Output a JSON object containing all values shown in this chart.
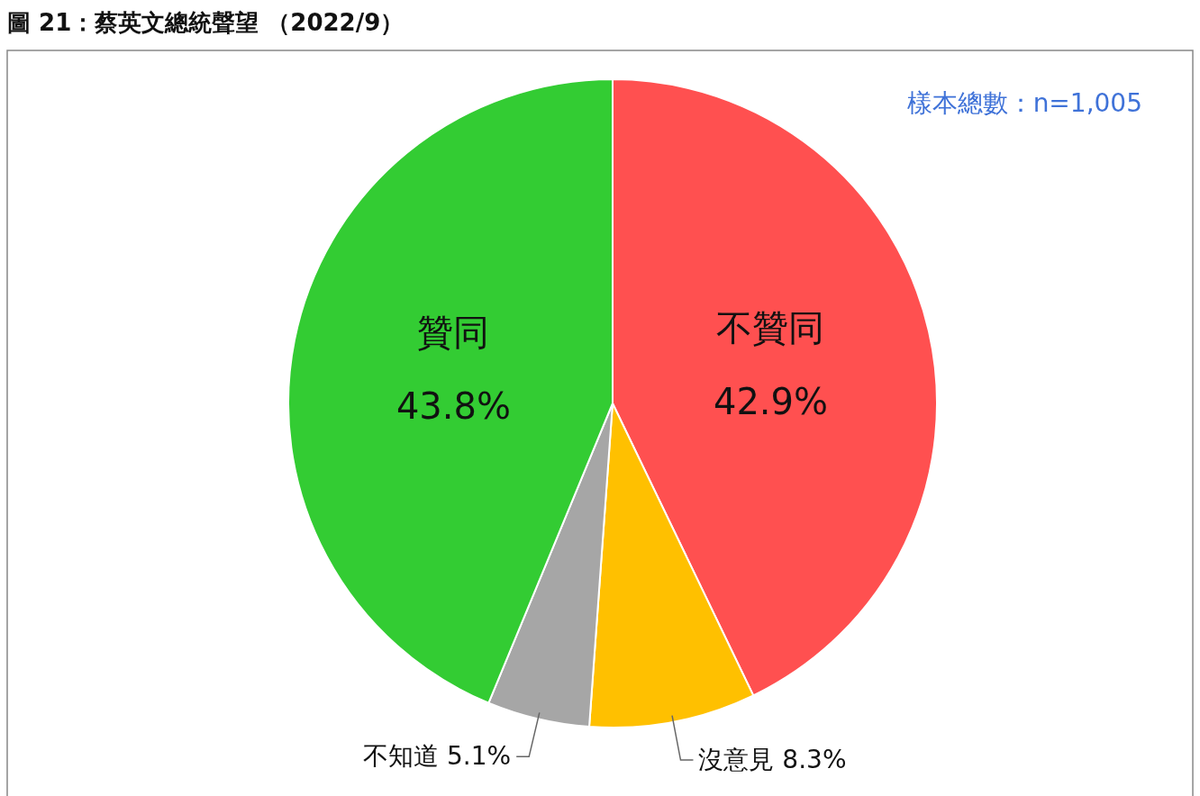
{
  "chart_data": {
    "type": "pie",
    "title": "圖 21：蔡英文總統聲望 （2022/9）",
    "categories": [
      "不贊同",
      "沒意見",
      "不知道",
      "贊同"
    ],
    "values": [
      42.9,
      8.3,
      5.1,
      43.8
    ],
    "value_labels": [
      "42.9%",
      "8.3%",
      "5.1%",
      "43.8%"
    ],
    "colors": [
      "#ff5050",
      "#ffc000",
      "#a6a6a6",
      "#33cc33"
    ],
    "annotations": [
      "樣本總數：n=1,005"
    ]
  }
}
